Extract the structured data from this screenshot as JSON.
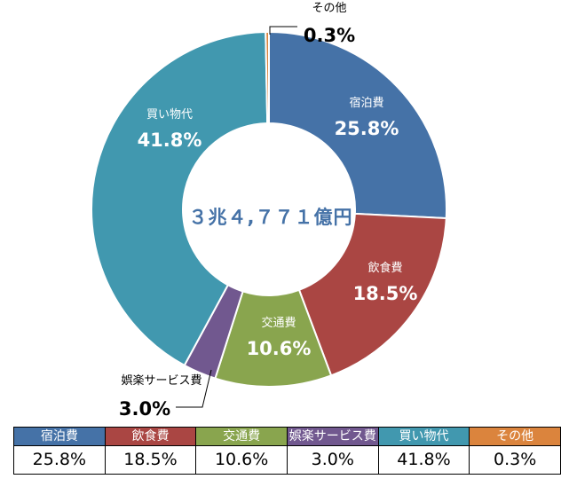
{
  "chart_data": {
    "type": "pie",
    "center_label": "３兆４,７７１億円",
    "categories": [
      "宿泊費",
      "飲食費",
      "交通費",
      "娯楽サービス費",
      "買い物代",
      "その他"
    ],
    "values": [
      25.8,
      18.5,
      10.6,
      3.0,
      41.8,
      0.3
    ],
    "value_labels": [
      "25.8%",
      "18.5%",
      "10.6%",
      "3.0%",
      "41.8%",
      "0.3%"
    ],
    "colors": [
      "#4572A7",
      "#AA4643",
      "#89A54E",
      "#71588F",
      "#4198AF",
      "#DB843D"
    ]
  },
  "table": {
    "headers": [
      "宿泊費",
      "飲食費",
      "交通費",
      "娯楽サービス費",
      "買い物代",
      "その他"
    ],
    "values": [
      "25.8%",
      "18.5%",
      "10.6%",
      "3.0%",
      "41.8%",
      "0.3%"
    ]
  }
}
